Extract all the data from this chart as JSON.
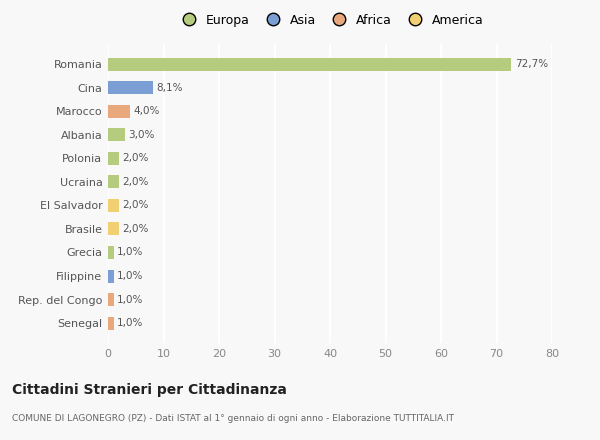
{
  "categories": [
    "Senegal",
    "Rep. del Congo",
    "Filippine",
    "Grecia",
    "Brasile",
    "El Salvador",
    "Ucraina",
    "Polonia",
    "Albania",
    "Marocco",
    "Cina",
    "Romania"
  ],
  "values": [
    1.0,
    1.0,
    1.0,
    1.0,
    2.0,
    2.0,
    2.0,
    2.0,
    3.0,
    4.0,
    8.1,
    72.7
  ],
  "labels": [
    "1,0%",
    "1,0%",
    "1,0%",
    "1,0%",
    "2,0%",
    "2,0%",
    "2,0%",
    "2,0%",
    "3,0%",
    "4,0%",
    "8,1%",
    "72,7%"
  ],
  "colors": [
    "#e8a87c",
    "#e8a87c",
    "#7b9fd4",
    "#b5cb7d",
    "#f0d070",
    "#f0d070",
    "#b5cb7d",
    "#b5cb7d",
    "#b5cb7d",
    "#e8a87c",
    "#7b9fd4",
    "#b5cb7d"
  ],
  "continent_colors": {
    "Europa": "#b5cb7d",
    "Asia": "#7b9fd4",
    "Africa": "#e8a87c",
    "America": "#f0d070"
  },
  "legend_labels": [
    "Europa",
    "Asia",
    "Africa",
    "America"
  ],
  "title": "Cittadini Stranieri per Cittadinanza",
  "subtitle": "COMUNE DI LAGONEGRO (PZ) - Dati ISTAT al 1° gennaio di ogni anno - Elaborazione TUTTITALIA.IT",
  "xlim": [
    0,
    80
  ],
  "xticks": [
    0,
    10,
    20,
    30,
    40,
    50,
    60,
    70,
    80
  ],
  "background_color": "#f8f8f8",
  "grid_color": "#ffffff",
  "bar_height": 0.55
}
